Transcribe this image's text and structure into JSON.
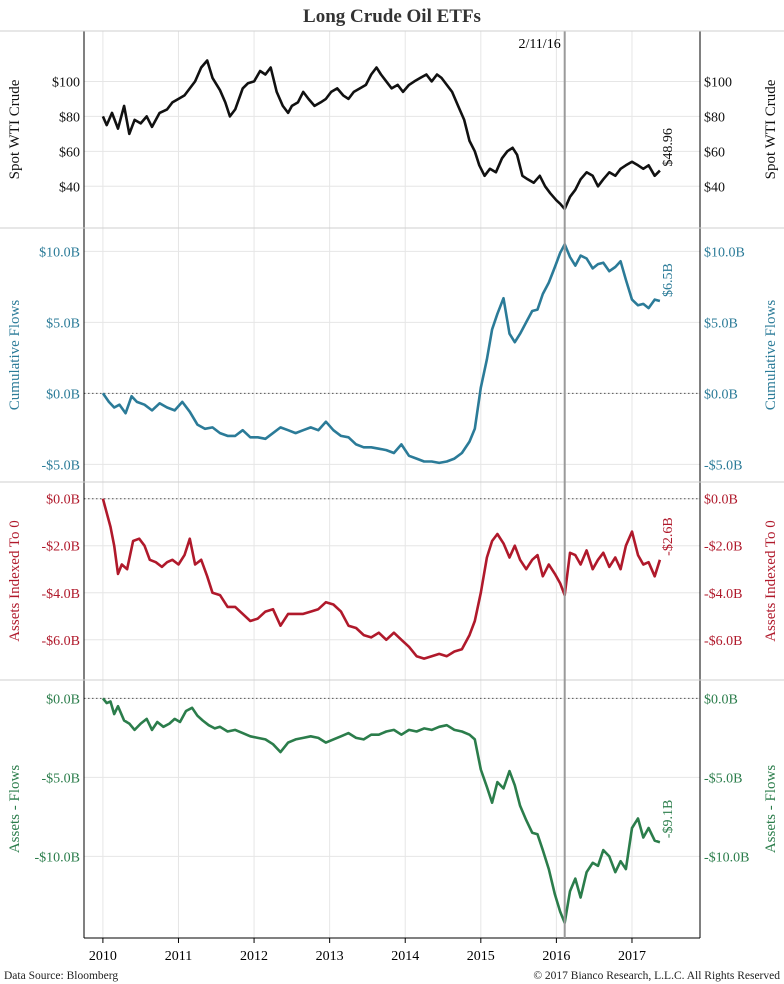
{
  "title": "Long Crude Oil ETFs",
  "footer": {
    "source": "Data Source: Bloomberg",
    "copyright": "© 2017 Bianco Research, L.L.C. All Rights Reserved"
  },
  "colors": {
    "price": "#111111",
    "flows": "#2b7b98",
    "assets": "#b0192b",
    "diff": "#2b7d4b",
    "axis": "#000000",
    "grid": "#e6e6e6",
    "marker": "#9a9a9a"
  },
  "chart_data": {
    "type": "line",
    "marker": {
      "x": 2016.11,
      "label": "2/11/16"
    },
    "xlim": [
      2009.75,
      2017.9
    ],
    "x_ticks": [
      {
        "v": 2010,
        "label": "2010"
      },
      {
        "v": 2011,
        "label": "2011"
      },
      {
        "v": 2012,
        "label": "2012"
      },
      {
        "v": 2013,
        "label": "2013"
      },
      {
        "v": 2014,
        "label": "2014"
      },
      {
        "v": 2015,
        "label": "2015"
      },
      {
        "v": 2016,
        "label": "2016"
      },
      {
        "v": 2017,
        "label": "2017"
      }
    ],
    "panels": [
      {
        "key": "price",
        "ylabel": "Spot WTI Crude",
        "ylim": [
          23,
          122
        ],
        "yticks": [
          {
            "v": 40,
            "label": "$40"
          },
          {
            "v": 60,
            "label": "$60"
          },
          {
            "v": 80,
            "label": "$80"
          },
          {
            "v": 100,
            "label": "$100"
          }
        ],
        "zero_line": null,
        "end_label": "$48.96",
        "series": {
          "x": [
            2010.0,
            2010.05,
            2010.12,
            2010.2,
            2010.28,
            2010.35,
            2010.42,
            2010.5,
            2010.58,
            2010.65,
            2010.75,
            2010.85,
            2010.92,
            2011.0,
            2011.08,
            2011.15,
            2011.22,
            2011.3,
            2011.38,
            2011.45,
            2011.55,
            2011.62,
            2011.68,
            2011.75,
            2011.85,
            2011.92,
            2012.0,
            2012.08,
            2012.15,
            2012.22,
            2012.3,
            2012.38,
            2012.45,
            2012.5,
            2012.58,
            2012.65,
            2012.72,
            2012.8,
            2012.88,
            2012.95,
            2013.02,
            2013.1,
            2013.18,
            2013.25,
            2013.32,
            2013.4,
            2013.48,
            2013.55,
            2013.62,
            2013.68,
            2013.75,
            2013.82,
            2013.9,
            2013.97,
            2014.05,
            2014.12,
            2014.2,
            2014.28,
            2014.35,
            2014.42,
            2014.48,
            2014.55,
            2014.62,
            2014.7,
            2014.78,
            2014.85,
            2014.92,
            2014.98,
            2015.05,
            2015.12,
            2015.2,
            2015.28,
            2015.35,
            2015.42,
            2015.48,
            2015.55,
            2015.62,
            2015.7,
            2015.78,
            2015.85,
            2015.92,
            2016.0,
            2016.05,
            2016.11,
            2016.18,
            2016.25,
            2016.32,
            2016.4,
            2016.48,
            2016.55,
            2016.62,
            2016.7,
            2016.78,
            2016.85,
            2016.92,
            2017.0,
            2017.08,
            2017.15,
            2017.22,
            2017.3,
            2017.37
          ],
          "y": [
            80,
            75,
            82,
            73,
            86,
            70,
            78,
            76,
            80,
            74,
            82,
            84,
            88,
            90,
            92,
            96,
            100,
            108,
            112,
            102,
            95,
            88,
            80,
            84,
            96,
            99,
            100,
            106,
            104,
            108,
            94,
            86,
            82,
            86,
            88,
            94,
            90,
            86,
            88,
            90,
            94,
            96,
            92,
            90,
            94,
            96,
            98,
            104,
            108,
            104,
            100,
            96,
            98,
            94,
            98,
            100,
            102,
            104,
            100,
            104,
            102,
            98,
            94,
            86,
            78,
            66,
            60,
            52,
            46,
            50,
            48,
            56,
            60,
            62,
            58,
            46,
            44,
            42,
            46,
            40,
            36,
            32,
            30,
            27,
            34,
            38,
            44,
            48,
            46,
            40,
            44,
            48,
            46,
            50,
            52,
            54,
            52,
            50,
            52,
            46,
            49
          ]
        }
      },
      {
        "key": "flows",
        "ylabel": "Cumulative Flows",
        "ylim": [
          -5.4,
          10.8
        ],
        "yticks": [
          {
            "v": -5,
            "label": "-$5.0B"
          },
          {
            "v": 0,
            "label": "$0.0B"
          },
          {
            "v": 5,
            "label": "$5.0B"
          },
          {
            "v": 10,
            "label": "$10.0B"
          }
        ],
        "zero_line": 0,
        "end_label": "$6.5B",
        "series": {
          "x": [
            2010.0,
            2010.08,
            2010.15,
            2010.22,
            2010.3,
            2010.38,
            2010.45,
            2010.55,
            2010.65,
            2010.75,
            2010.85,
            2010.95,
            2011.05,
            2011.15,
            2011.25,
            2011.35,
            2011.45,
            2011.55,
            2011.65,
            2011.75,
            2011.85,
            2011.95,
            2012.05,
            2012.15,
            2012.25,
            2012.35,
            2012.45,
            2012.55,
            2012.65,
            2012.75,
            2012.85,
            2012.95,
            2013.05,
            2013.15,
            2013.25,
            2013.35,
            2013.45,
            2013.55,
            2013.65,
            2013.75,
            2013.85,
            2013.95,
            2014.05,
            2014.15,
            2014.25,
            2014.35,
            2014.45,
            2014.55,
            2014.65,
            2014.75,
            2014.85,
            2014.92,
            2015.0,
            2015.08,
            2015.15,
            2015.22,
            2015.3,
            2015.38,
            2015.45,
            2015.52,
            2015.6,
            2015.68,
            2015.75,
            2015.82,
            2015.9,
            2015.98,
            2016.05,
            2016.11,
            2016.18,
            2016.25,
            2016.32,
            2016.4,
            2016.48,
            2016.55,
            2016.62,
            2016.7,
            2016.78,
            2016.85,
            2016.92,
            2017.0,
            2017.08,
            2017.15,
            2017.22,
            2017.3,
            2017.37
          ],
          "y": [
            0,
            -0.6,
            -1.0,
            -0.8,
            -1.4,
            -0.2,
            -0.6,
            -0.8,
            -1.2,
            -0.7,
            -1.0,
            -1.2,
            -0.6,
            -1.3,
            -2.2,
            -2.5,
            -2.4,
            -2.8,
            -3.0,
            -3.0,
            -2.6,
            -3.1,
            -3.1,
            -3.2,
            -2.8,
            -2.4,
            -2.6,
            -2.8,
            -2.6,
            -2.4,
            -2.6,
            -2.0,
            -2.6,
            -3.0,
            -3.1,
            -3.6,
            -3.8,
            -3.8,
            -3.9,
            -4.0,
            -4.2,
            -3.6,
            -4.4,
            -4.6,
            -4.8,
            -4.8,
            -4.9,
            -4.8,
            -4.6,
            -4.2,
            -3.4,
            -2.5,
            0.4,
            2.4,
            4.5,
            5.6,
            6.7,
            4.2,
            3.6,
            4.2,
            5.0,
            5.8,
            5.9,
            7.0,
            7.8,
            8.9,
            9.9,
            10.5,
            9.6,
            9.0,
            9.7,
            9.5,
            8.8,
            9.1,
            9.2,
            8.6,
            8.9,
            9.3,
            8.0,
            6.6,
            6.2,
            6.3,
            6.0,
            6.6,
            6.5
          ]
        }
      },
      {
        "key": "assets",
        "ylabel": "Assets Indexed To 0",
        "ylim": [
          -7.2,
          0.2
        ],
        "yticks": [
          {
            "v": -6,
            "label": "-$6.0B"
          },
          {
            "v": -4,
            "label": "-$4.0B"
          },
          {
            "v": -2,
            "label": "-$2.0B"
          },
          {
            "v": 0,
            "label": "$0.0B"
          }
        ],
        "zero_line": 0,
        "end_label": "-$2.6B",
        "series": {
          "x": [
            2010.0,
            2010.05,
            2010.1,
            2010.15,
            2010.2,
            2010.25,
            2010.32,
            2010.4,
            2010.48,
            2010.55,
            2010.62,
            2010.7,
            2010.78,
            2010.85,
            2010.92,
            2011.0,
            2011.08,
            2011.15,
            2011.22,
            2011.3,
            2011.38,
            2011.45,
            2011.55,
            2011.65,
            2011.75,
            2011.85,
            2011.95,
            2012.05,
            2012.15,
            2012.25,
            2012.35,
            2012.45,
            2012.55,
            2012.65,
            2012.75,
            2012.85,
            2012.95,
            2013.05,
            2013.15,
            2013.25,
            2013.35,
            2013.45,
            2013.55,
            2013.65,
            2013.75,
            2013.85,
            2013.95,
            2014.05,
            2014.15,
            2014.25,
            2014.35,
            2014.45,
            2014.55,
            2014.65,
            2014.75,
            2014.85,
            2014.92,
            2015.0,
            2015.08,
            2015.15,
            2015.22,
            2015.3,
            2015.38,
            2015.45,
            2015.52,
            2015.6,
            2015.68,
            2015.75,
            2015.82,
            2015.9,
            2015.98,
            2016.05,
            2016.11,
            2016.18,
            2016.25,
            2016.32,
            2016.4,
            2016.48,
            2016.55,
            2016.62,
            2016.7,
            2016.78,
            2016.85,
            2016.92,
            2017.0,
            2017.08,
            2017.15,
            2017.22,
            2017.3,
            2017.37
          ],
          "y": [
            0,
            -0.6,
            -1.2,
            -2.0,
            -3.2,
            -2.8,
            -3.0,
            -1.8,
            -1.7,
            -2.0,
            -2.6,
            -2.7,
            -2.9,
            -2.7,
            -2.6,
            -2.8,
            -2.4,
            -1.7,
            -2.8,
            -2.6,
            -3.3,
            -4.0,
            -4.1,
            -4.6,
            -4.6,
            -4.9,
            -5.2,
            -5.1,
            -4.8,
            -4.7,
            -5.4,
            -4.9,
            -4.9,
            -4.9,
            -4.8,
            -4.7,
            -4.4,
            -4.5,
            -4.8,
            -5.4,
            -5.5,
            -5.8,
            -5.9,
            -5.7,
            -6.0,
            -5.7,
            -6.0,
            -6.3,
            -6.7,
            -6.8,
            -6.7,
            -6.6,
            -6.7,
            -6.5,
            -6.4,
            -5.8,
            -5.2,
            -4.0,
            -2.5,
            -1.8,
            -1.5,
            -1.9,
            -2.5,
            -2.0,
            -2.6,
            -3.0,
            -2.6,
            -2.4,
            -3.3,
            -2.8,
            -3.2,
            -3.6,
            -4.1,
            -2.3,
            -2.4,
            -2.8,
            -2.2,
            -3.0,
            -2.6,
            -2.3,
            -2.9,
            -2.5,
            -3.0,
            -2.0,
            -1.4,
            -2.4,
            -2.8,
            -2.7,
            -3.3,
            -2.6
          ]
        }
      },
      {
        "key": "diff",
        "ylabel": "Assets - Flows",
        "ylim": [
          -14.4,
          0.4
        ],
        "yticks": [
          {
            "v": -10,
            "label": "-$10.0B"
          },
          {
            "v": -5,
            "label": "-$5.0B"
          },
          {
            "v": 0,
            "label": "$0.0B"
          }
        ],
        "zero_line": 0,
        "end_label": "-$9.1B",
        "series": {
          "x": [
            2010.0,
            2010.05,
            2010.1,
            2010.15,
            2010.2,
            2010.28,
            2010.35,
            2010.42,
            2010.5,
            2010.58,
            2010.65,
            2010.72,
            2010.8,
            2010.88,
            2010.95,
            2011.02,
            2011.1,
            2011.18,
            2011.25,
            2011.32,
            2011.4,
            2011.48,
            2011.55,
            2011.65,
            2011.75,
            2011.85,
            2011.95,
            2012.05,
            2012.15,
            2012.25,
            2012.35,
            2012.45,
            2012.55,
            2012.65,
            2012.75,
            2012.85,
            2012.95,
            2013.05,
            2013.15,
            2013.25,
            2013.35,
            2013.45,
            2013.55,
            2013.65,
            2013.75,
            2013.85,
            2013.95,
            2014.05,
            2014.15,
            2014.25,
            2014.35,
            2014.45,
            2014.55,
            2014.65,
            2014.75,
            2014.85,
            2014.92,
            2015.0,
            2015.08,
            2015.15,
            2015.22,
            2015.3,
            2015.38,
            2015.45,
            2015.52,
            2015.6,
            2015.68,
            2015.75,
            2015.82,
            2015.9,
            2015.98,
            2016.05,
            2016.11,
            2016.18,
            2016.25,
            2016.32,
            2016.4,
            2016.48,
            2016.55,
            2016.62,
            2016.7,
            2016.78,
            2016.85,
            2016.92,
            2017.0,
            2017.08,
            2017.15,
            2017.22,
            2017.3,
            2017.37
          ],
          "y": [
            0,
            -0.3,
            -0.2,
            -1.0,
            -0.5,
            -1.4,
            -1.6,
            -2.0,
            -1.6,
            -1.3,
            -2.0,
            -1.5,
            -1.8,
            -1.6,
            -1.3,
            -1.5,
            -0.8,
            -0.6,
            -1.1,
            -1.4,
            -1.7,
            -1.9,
            -1.8,
            -2.1,
            -2.0,
            -2.2,
            -2.4,
            -2.5,
            -2.6,
            -2.9,
            -3.4,
            -2.8,
            -2.6,
            -2.5,
            -2.4,
            -2.5,
            -2.8,
            -2.6,
            -2.4,
            -2.2,
            -2.5,
            -2.6,
            -2.3,
            -2.3,
            -2.1,
            -2.0,
            -2.3,
            -2.0,
            -2.1,
            -1.9,
            -2.0,
            -1.8,
            -1.7,
            -2.0,
            -2.1,
            -2.3,
            -2.6,
            -4.5,
            -5.6,
            -6.6,
            -5.3,
            -5.7,
            -4.6,
            -5.5,
            -6.8,
            -7.7,
            -8.5,
            -8.6,
            -9.6,
            -10.8,
            -12.4,
            -13.5,
            -14.2,
            -12.2,
            -11.4,
            -12.6,
            -11.0,
            -10.4,
            -10.6,
            -9.6,
            -10.0,
            -11.0,
            -10.3,
            -10.8,
            -8.2,
            -7.6,
            -8.8,
            -8.2,
            -9.0,
            -9.1
          ]
        }
      }
    ]
  }
}
